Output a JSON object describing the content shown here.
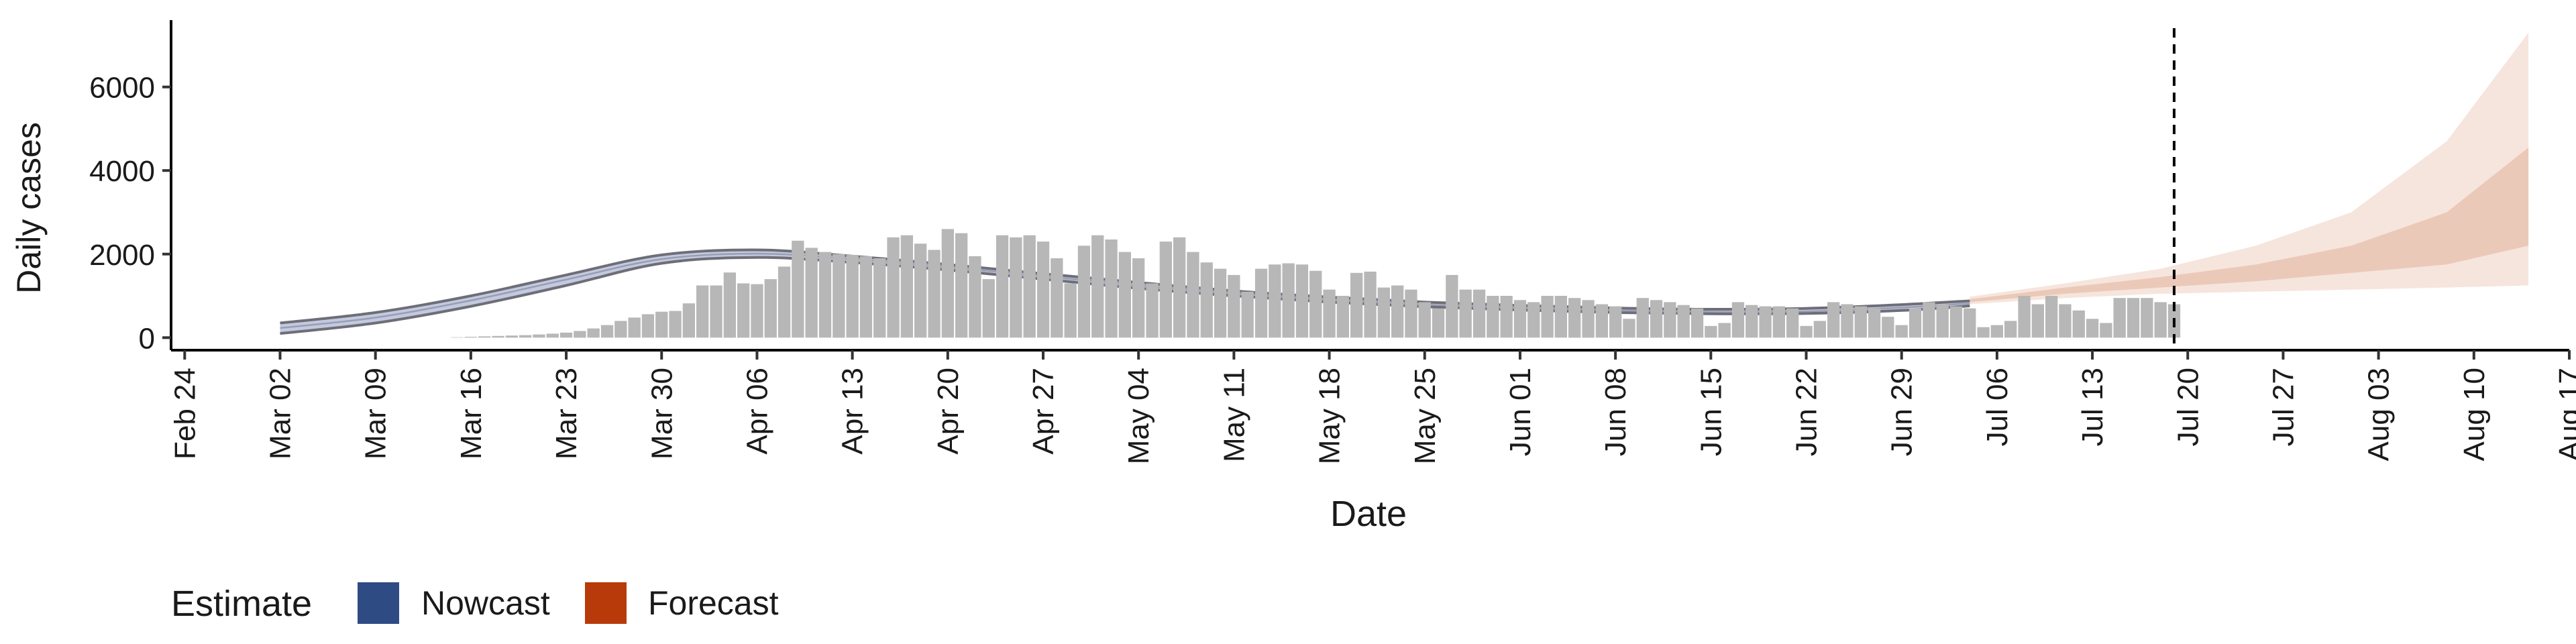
{
  "chart_data": {
    "type": "bar",
    "title": "",
    "xlabel": "Date",
    "ylabel": "Daily cases",
    "x_ticks": [
      "Feb 24",
      "Mar 02",
      "Mar 09",
      "Mar 16",
      "Mar 23",
      "Mar 30",
      "Apr 06",
      "Apr 13",
      "Apr 20",
      "Apr 27",
      "May 04",
      "May 11",
      "May 18",
      "May 25",
      "Jun 01",
      "Jun 08",
      "Jun 15",
      "Jun 22",
      "Jun 29",
      "Jul 06",
      "Jul 13",
      "Jul 20",
      "Jul 27",
      "Aug 03",
      "Aug 10",
      "Aug 17"
    ],
    "y_ticks": [
      0,
      2000,
      4000,
      6000
    ],
    "ylim": [
      -300,
      7600
    ],
    "xlim_days_from_first_tick": [
      -1,
      175
    ],
    "vline_date": "Jul 19",
    "legend": {
      "title": "Estimate",
      "position": "bottom-left",
      "items": [
        {
          "label": "Nowcast",
          "color": "#2f4b84"
        },
        {
          "label": "Forecast",
          "color": "#b83a0a"
        }
      ]
    },
    "colors": {
      "bars": "#b7b7b7",
      "nowcast_band": "#b9c0d8",
      "nowcast_line": "#6e6e78",
      "forecast_outer": "#f6e5dd",
      "forecast_inner": "#ebc9b8",
      "vline": "#000000"
    },
    "reported_cases": {
      "start_date": "Mar 15",
      "values": [
        10,
        20,
        30,
        40,
        50,
        60,
        75,
        95,
        120,
        160,
        220,
        300,
        400,
        480,
        560,
        620,
        640,
        820,
        1250,
        1250,
        1560,
        1300,
        1280,
        1400,
        1700,
        2320,
        2150,
        2050,
        2000,
        1980,
        1950,
        1900,
        2400,
        2450,
        2250,
        2100,
        2600,
        2500,
        1950,
        1400,
        2450,
        2400,
        2450,
        2300,
        1900,
        1300,
        2200,
        2450,
        2350,
        2050,
        1900,
        1300,
        2300,
        2400,
        2050,
        1800,
        1650,
        1500,
        1100,
        1650,
        1750,
        1780,
        1750,
        1600,
        1150,
        1000,
        1550,
        1580,
        1200,
        1250,
        1150,
        850,
        700,
        1500,
        1150,
        1150,
        1000,
        1000,
        900,
        850,
        1000,
        1000,
        950,
        900,
        800,
        750,
        450,
        950,
        900,
        850,
        780,
        700,
        280,
        350,
        850,
        780,
        750,
        750,
        700,
        280,
        400,
        850,
        800,
        750,
        700,
        500,
        300,
        700,
        850,
        800,
        750,
        700,
        250,
        300,
        400,
        1000,
        800,
        1000,
        800,
        650,
        450,
        350,
        950,
        950,
        950,
        850,
        800
      ]
    },
    "nowcast": {
      "start_date": "Mar 02",
      "end_date": "Jul 04",
      "points": [
        {
          "date": "Mar 02",
          "lower": 100,
          "median": 230,
          "upper": 350
        },
        {
          "date": "Mar 09",
          "lower": 350,
          "median": 480,
          "upper": 600
        },
        {
          "date": "Mar 16",
          "lower": 750,
          "median": 890,
          "upper": 1000
        },
        {
          "date": "Mar 23",
          "lower": 1250,
          "median": 1390,
          "upper": 1500
        },
        {
          "date": "Mar 30",
          "lower": 1780,
          "median": 1880,
          "upper": 1980
        },
        {
          "date": "Apr 06",
          "lower": 1920,
          "median": 2010,
          "upper": 2100
        },
        {
          "date": "Apr 13",
          "lower": 1800,
          "median": 1880,
          "upper": 1950
        },
        {
          "date": "Apr 20",
          "lower": 1620,
          "median": 1690,
          "upper": 1750
        },
        {
          "date": "Apr 27",
          "lower": 1400,
          "median": 1470,
          "upper": 1530
        },
        {
          "date": "May 04",
          "lower": 1180,
          "median": 1250,
          "upper": 1320
        },
        {
          "date": "May 11",
          "lower": 1000,
          "median": 1060,
          "upper": 1120
        },
        {
          "date": "May 18",
          "lower": 850,
          "median": 910,
          "upper": 970
        },
        {
          "date": "May 25",
          "lower": 740,
          "median": 790,
          "upper": 850
        },
        {
          "date": "Jun 01",
          "lower": 660,
          "median": 710,
          "upper": 770
        },
        {
          "date": "Jun 08",
          "lower": 600,
          "median": 650,
          "upper": 710
        },
        {
          "date": "Jun 15",
          "lower": 570,
          "median": 620,
          "upper": 680
        },
        {
          "date": "Jun 22",
          "lower": 580,
          "median": 630,
          "upper": 700
        },
        {
          "date": "Jun 29",
          "lower": 650,
          "median": 720,
          "upper": 790
        },
        {
          "date": "Jul 04",
          "lower": 760,
          "median": 820,
          "upper": 880
        }
      ]
    },
    "forecast": {
      "start_date": "Jul 04",
      "end_date": "Aug 14",
      "points": [
        {
          "date": "Jul 04",
          "lower90": 800,
          "lower50": 850,
          "upper50": 920,
          "upper90": 980
        },
        {
          "date": "Jul 11",
          "lower90": 950,
          "lower50": 1050,
          "upper50": 1200,
          "upper90": 1300
        },
        {
          "date": "Jul 18",
          "lower90": 1050,
          "lower50": 1200,
          "upper50": 1450,
          "upper90": 1650
        },
        {
          "date": "Jul 25",
          "lower90": 1100,
          "lower50": 1350,
          "upper50": 1750,
          "upper90": 2200
        },
        {
          "date": "Aug 01",
          "lower90": 1150,
          "lower50": 1550,
          "upper50": 2200,
          "upper90": 3000
        },
        {
          "date": "Aug 08",
          "lower90": 1200,
          "lower50": 1750,
          "upper50": 3000,
          "upper90": 4700
        },
        {
          "date": "Aug 14",
          "lower90": 1250,
          "lower50": 2200,
          "upper50": 4550,
          "upper90": 7300
        }
      ]
    }
  }
}
